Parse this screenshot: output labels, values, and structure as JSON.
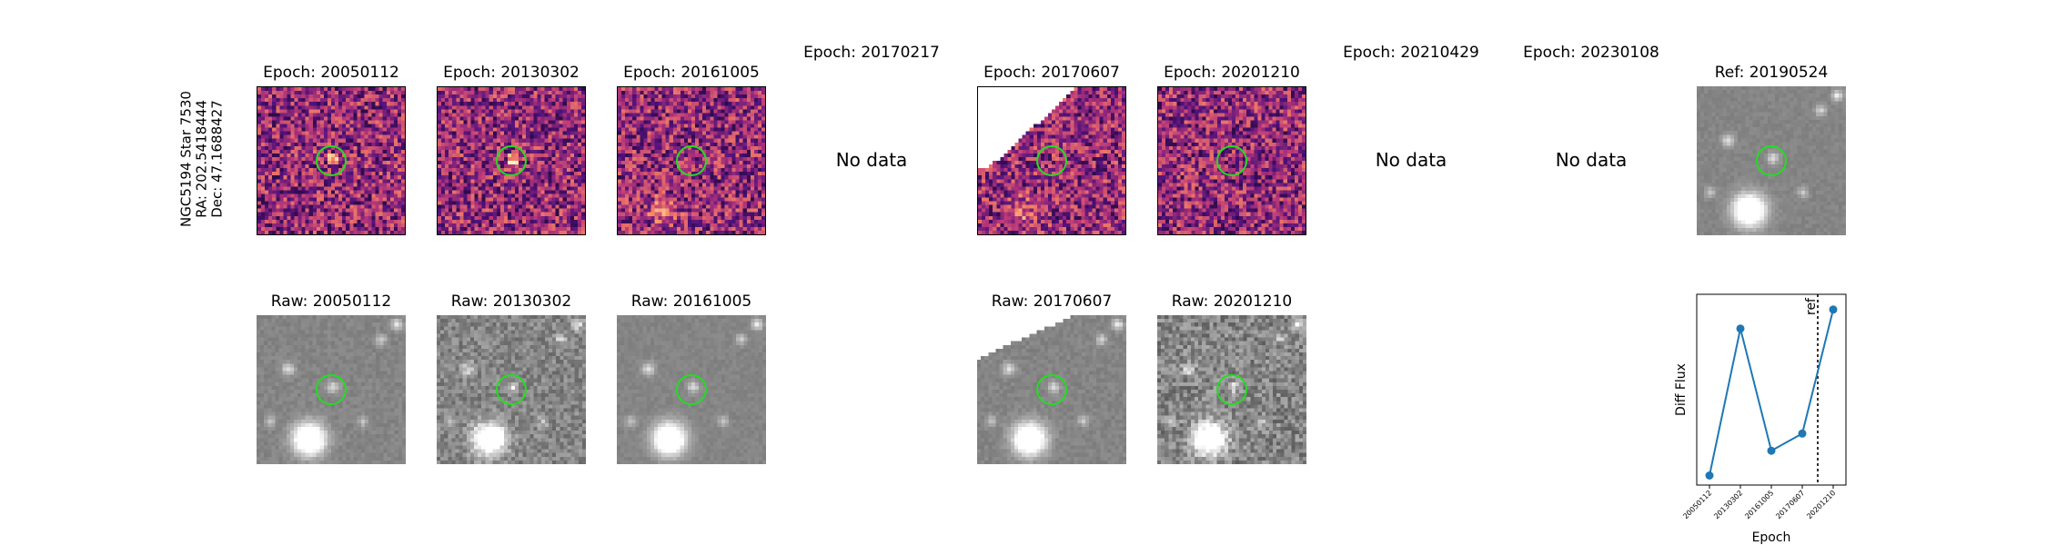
{
  "star": {
    "line1": "NGC5194 Star 7530",
    "line2": "RA: 202.5418444",
    "line3": "Dec: 47.1688427"
  },
  "top_row": [
    {
      "title": "Epoch: 20050112",
      "has_data": true
    },
    {
      "title": "Epoch: 20130302",
      "has_data": true
    },
    {
      "title": "Epoch: 20161005",
      "has_data": true
    },
    {
      "title": "Epoch: 20170217",
      "has_data": false,
      "no_data_label": "No data"
    },
    {
      "title": "Epoch: 20170607",
      "has_data": true
    },
    {
      "title": "Epoch: 20201210",
      "has_data": true
    },
    {
      "title": "Epoch: 20210429",
      "has_data": false,
      "no_data_label": "No data"
    },
    {
      "title": "Epoch: 20230108",
      "has_data": false,
      "no_data_label": "No data"
    },
    {
      "title": "Ref: 20190524",
      "has_data": true
    }
  ],
  "bottom_row": [
    {
      "title": "Raw: 20050112"
    },
    {
      "title": "Raw: 20130302"
    },
    {
      "title": "Raw: 20161005"
    },
    {
      "title": "Raw: 20170607"
    },
    {
      "title": "Raw: 20201210"
    }
  ],
  "chart_data": {
    "type": "line",
    "categories": [
      "20050112",
      "20130302",
      "20161005",
      "20170607",
      "20201210"
    ],
    "values": [
      0.05,
      0.82,
      0.18,
      0.27,
      0.92
    ],
    "xlabel": "Epoch",
    "ylabel": "Diff Flux",
    "ref_marker_label": "ref",
    "ref_position": 3.5,
    "ylim": [
      0,
      1
    ],
    "series_color": "#1f77b4"
  }
}
